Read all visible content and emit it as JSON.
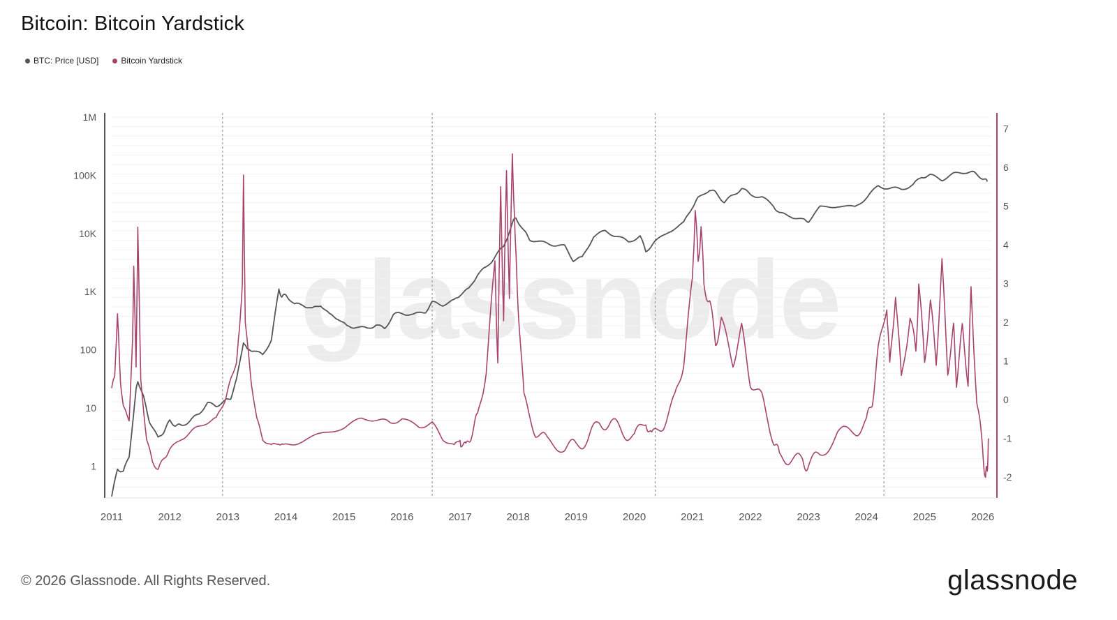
{
  "title": "Bitcoin: Bitcoin Yardstick",
  "legend": [
    {
      "label": "BTC: Price [USD]",
      "color": "#555555"
    },
    {
      "label": "Bitcoin Yardstick",
      "color": "#a8446c"
    }
  ],
  "footer": "© 2026 Glassnode. All Rights Reserved.",
  "brand": "glassnode",
  "watermark": "glassnode",
  "chart_data": {
    "type": "line",
    "title": "Bitcoin: Bitcoin Yardstick",
    "x_tick_labels": [
      "2011",
      "2012",
      "2013",
      "2014",
      "2015",
      "2016",
      "2017",
      "2018",
      "2019",
      "2020",
      "2021",
      "2022",
      "2023",
      "2024",
      "2025",
      "2026"
    ],
    "y_left_tick_labels": [
      "1",
      "10",
      "100",
      "1K",
      "10K",
      "100K",
      "1M"
    ],
    "y_left_scale": "log",
    "y_left_range": [
      0.3,
      1000000
    ],
    "y_right_tick_labels": [
      "-2",
      "-1",
      "0",
      "1",
      "2",
      "3",
      "4",
      "5",
      "6",
      "7"
    ],
    "y_right_range": [
      -2.5,
      7.3
    ],
    "x_range": [
      2011.0,
      2026.15
    ],
    "halving_lines": [
      2012.91,
      2016.52,
      2020.36,
      2024.3
    ],
    "grid": false,
    "legend_position": "top-left",
    "series": [
      {
        "name": "BTC: Price [USD]",
        "axis": "left",
        "color": "#555555",
        "x": [
          2011.0,
          2011.1,
          2011.2,
          2011.3,
          2011.42,
          2011.45,
          2011.55,
          2011.65,
          2011.8,
          2011.9,
          2012.0,
          2012.1,
          2012.2,
          2012.35,
          2012.5,
          2012.65,
          2012.8,
          2012.95,
          2013.05,
          2013.15,
          2013.27,
          2013.33,
          2013.45,
          2013.6,
          2013.75,
          2013.88,
          2013.93,
          2014.0,
          2014.15,
          2014.3,
          2014.45,
          2014.6,
          2014.75,
          2014.9,
          2015.05,
          2015.2,
          2015.4,
          2015.55,
          2015.7,
          2015.85,
          2016.0,
          2016.2,
          2016.4,
          2016.52,
          2016.7,
          2016.9,
          2017.0,
          2017.15,
          2017.3,
          2017.45,
          2017.6,
          2017.75,
          2017.9,
          2017.96,
          2018.1,
          2018.2,
          2018.4,
          2018.6,
          2018.8,
          2018.95,
          2019.1,
          2019.3,
          2019.5,
          2019.7,
          2019.9,
          2020.1,
          2020.2,
          2020.35,
          2020.6,
          2020.85,
          2021.0,
          2021.1,
          2021.3,
          2021.4,
          2021.55,
          2021.7,
          2021.85,
          2022.0,
          2022.2,
          2022.4,
          2022.5,
          2022.7,
          2022.9,
          2023.0,
          2023.2,
          2023.5,
          2023.8,
          2024.0,
          2024.2,
          2024.4,
          2024.6,
          2024.8,
          2024.95,
          2025.1,
          2025.3,
          2025.5,
          2025.7,
          2025.85,
          2026.0,
          2026.08
        ],
        "y": [
          0.3,
          0.9,
          0.8,
          1.5,
          20,
          30,
          15,
          6,
          3,
          4,
          6,
          5,
          5,
          6,
          8,
          12,
          11,
          13,
          15,
          30,
          140,
          100,
          100,
          80,
          150,
          1100,
          800,
          900,
          600,
          600,
          500,
          600,
          400,
          350,
          250,
          250,
          230,
          270,
          230,
          400,
          430,
          400,
          450,
          650,
          600,
          700,
          900,
          1100,
          2000,
          2600,
          4000,
          6000,
          15000,
          19000,
          11000,
          8000,
          7000,
          6500,
          6000,
          3500,
          3800,
          9000,
          11000,
          9000,
          7200,
          9000,
          5000,
          7000,
          11000,
          15000,
          29000,
          40000,
          58000,
          50000,
          35000,
          45000,
          60000,
          47000,
          42000,
          30000,
          22000,
          20000,
          17000,
          16500,
          28000,
          30000,
          28000,
          42000,
          65000,
          60000,
          58000,
          68000,
          95000,
          100000,
          85000,
          105000,
          115000,
          110000,
          90000,
          78000
        ]
      },
      {
        "name": "Bitcoin Yardstick",
        "axis": "right",
        "color": "#a8446c",
        "x": [
          2011.0,
          2011.05,
          2011.1,
          2011.15,
          2011.2,
          2011.3,
          2011.36,
          2011.38,
          2011.42,
          2011.45,
          2011.5,
          2011.6,
          2011.7,
          2011.8,
          2011.9,
          2012.0,
          2012.2,
          2012.4,
          2012.6,
          2012.8,
          2012.95,
          2013.05,
          2013.15,
          2013.2,
          2013.25,
          2013.27,
          2013.3,
          2013.4,
          2013.5,
          2013.6,
          2013.75,
          2013.88,
          2013.95,
          2014.2,
          2014.6,
          2015.0,
          2015.3,
          2015.6,
          2015.8,
          2016.0,
          2016.3,
          2016.52,
          2016.7,
          2016.9,
          2017.0,
          2017.1,
          2017.2,
          2017.3,
          2017.45,
          2017.6,
          2017.65,
          2017.7,
          2017.75,
          2017.8,
          2017.85,
          2017.9,
          2017.95,
          2018.0,
          2018.1,
          2018.3,
          2018.5,
          2018.8,
          2019.0,
          2019.2,
          2019.4,
          2019.6,
          2019.8,
          2020.0,
          2020.2,
          2020.3,
          2020.5,
          2020.7,
          2020.85,
          2021.0,
          2021.05,
          2021.1,
          2021.15,
          2021.2,
          2021.3,
          2021.4,
          2021.5,
          2021.7,
          2021.85,
          2022.0,
          2022.2,
          2022.4,
          2022.5,
          2022.7,
          2022.9,
          2023.0,
          2023.2,
          2023.5,
          2023.8,
          2024.0,
          2024.1,
          2024.2,
          2024.35,
          2024.4,
          2024.5,
          2024.6,
          2024.75,
          2024.85,
          2024.9,
          2025.0,
          2025.1,
          2025.2,
          2025.3,
          2025.4,
          2025.5,
          2025.55,
          2025.65,
          2025.75,
          2025.8,
          2025.9,
          2026.0,
          2026.05,
          2026.08,
          2026.1
        ],
        "y": [
          0.3,
          0.6,
          2.2,
          0.5,
          -0.2,
          -0.5,
          1.5,
          3.5,
          0.8,
          4.5,
          0.5,
          -1.0,
          -1.6,
          -1.8,
          -1.5,
          -1.3,
          -1.0,
          -0.8,
          -0.6,
          -0.5,
          0.0,
          0.5,
          1.0,
          1.8,
          3.0,
          5.8,
          2.0,
          0.5,
          -0.5,
          -1.0,
          -1.2,
          -1.1,
          -1.2,
          -1.1,
          -0.9,
          -0.7,
          -0.5,
          -0.5,
          -0.6,
          -0.5,
          -0.7,
          -0.6,
          -1.0,
          -1.2,
          -1.0,
          -1.3,
          -0.8,
          -0.5,
          0.8,
          3.5,
          1.0,
          5.5,
          2.0,
          6.0,
          2.5,
          6.5,
          4.0,
          2.5,
          0.0,
          -0.8,
          -1.1,
          -1.2,
          -1.2,
          -1.0,
          -0.6,
          -0.6,
          -0.8,
          -1.0,
          -0.5,
          -1.0,
          -0.6,
          0.0,
          1.0,
          3.0,
          5.0,
          3.5,
          4.5,
          3.0,
          2.5,
          1.5,
          2.0,
          1.0,
          1.8,
          0.5,
          0.0,
          -1.0,
          -1.5,
          -1.5,
          -1.6,
          -1.7,
          -1.4,
          -0.9,
          -0.8,
          -0.6,
          0.0,
          1.2,
          2.5,
          0.8,
          2.8,
          0.5,
          2.2,
          1.2,
          3.0,
          1.0,
          2.5,
          1.0,
          3.5,
          0.8,
          1.8,
          0.5,
          1.8,
          0.5,
          2.8,
          0.0,
          -1.3,
          -2.0,
          -1.8,
          -1.0
        ]
      }
    ]
  }
}
